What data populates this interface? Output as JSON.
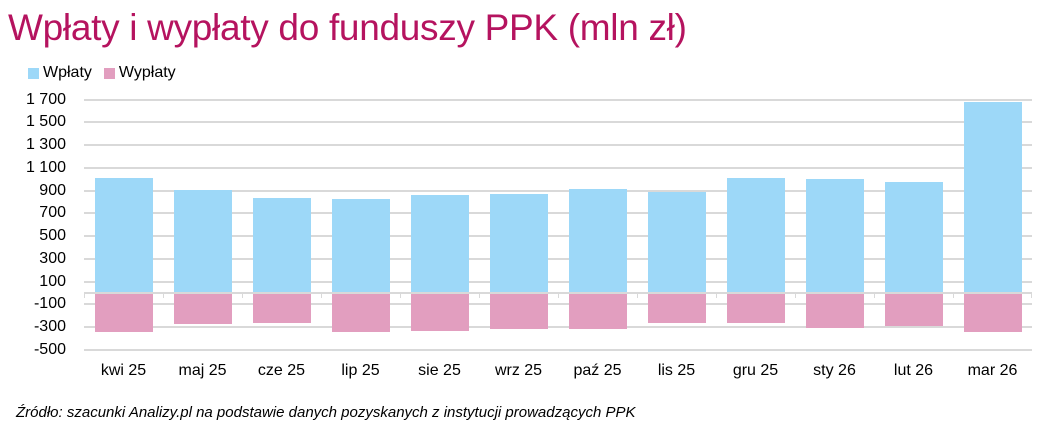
{
  "title": "Wpłaty i wypłaty do funduszy PPK (mln zł)",
  "legend": [
    {
      "label": "Wpłaty",
      "color": "#9dd8f8"
    },
    {
      "label": "Wypłaty",
      "color": "#e29ebf"
    }
  ],
  "source": "Źródło: szacunki Analizy.pl na podstawie danych pozyskanych z instytucji prowadzących PPK",
  "y_ticks": [
    "1 700",
    "1 500",
    "1 300",
    "1 100",
    "900",
    "700",
    "500",
    "300",
    "100",
    "-100",
    "-300",
    "-500"
  ],
  "chart_data": {
    "type": "bar",
    "title": "Wpłaty i wypłaty do funduszy PPK (mln zł)",
    "xlabel": "",
    "ylabel": "mln zł",
    "ylim": [
      -500,
      1700
    ],
    "y_tick_values": [
      1700,
      1500,
      1300,
      1100,
      900,
      700,
      500,
      300,
      100,
      -100,
      -300,
      -500
    ],
    "grid": true,
    "legend_position": "top-left",
    "stacked": true,
    "categories": [
      "kwi 25",
      "maj 25",
      "cze 25",
      "lip 25",
      "sie 25",
      "wrz 25",
      "paź 25",
      "lis 25",
      "gru 25",
      "sty 26",
      "lut 26",
      "mar 26"
    ],
    "series": [
      {
        "name": "Wpłaty",
        "color": "#9dd8f8",
        "values": [
          1010,
          905,
          835,
          825,
          860,
          870,
          915,
          890,
          1010,
          1000,
          975,
          1680
        ]
      },
      {
        "name": "Wypłaty",
        "color": "#e29ebf",
        "values": [
          -345,
          -270,
          -260,
          -340,
          -330,
          -315,
          -315,
          -260,
          -260,
          -305,
          -290,
          -345
        ]
      }
    ],
    "source": "Źródło: szacunki Analizy.pl na podstawie danych pozyskanych z instytucji prowadzących PPK"
  }
}
